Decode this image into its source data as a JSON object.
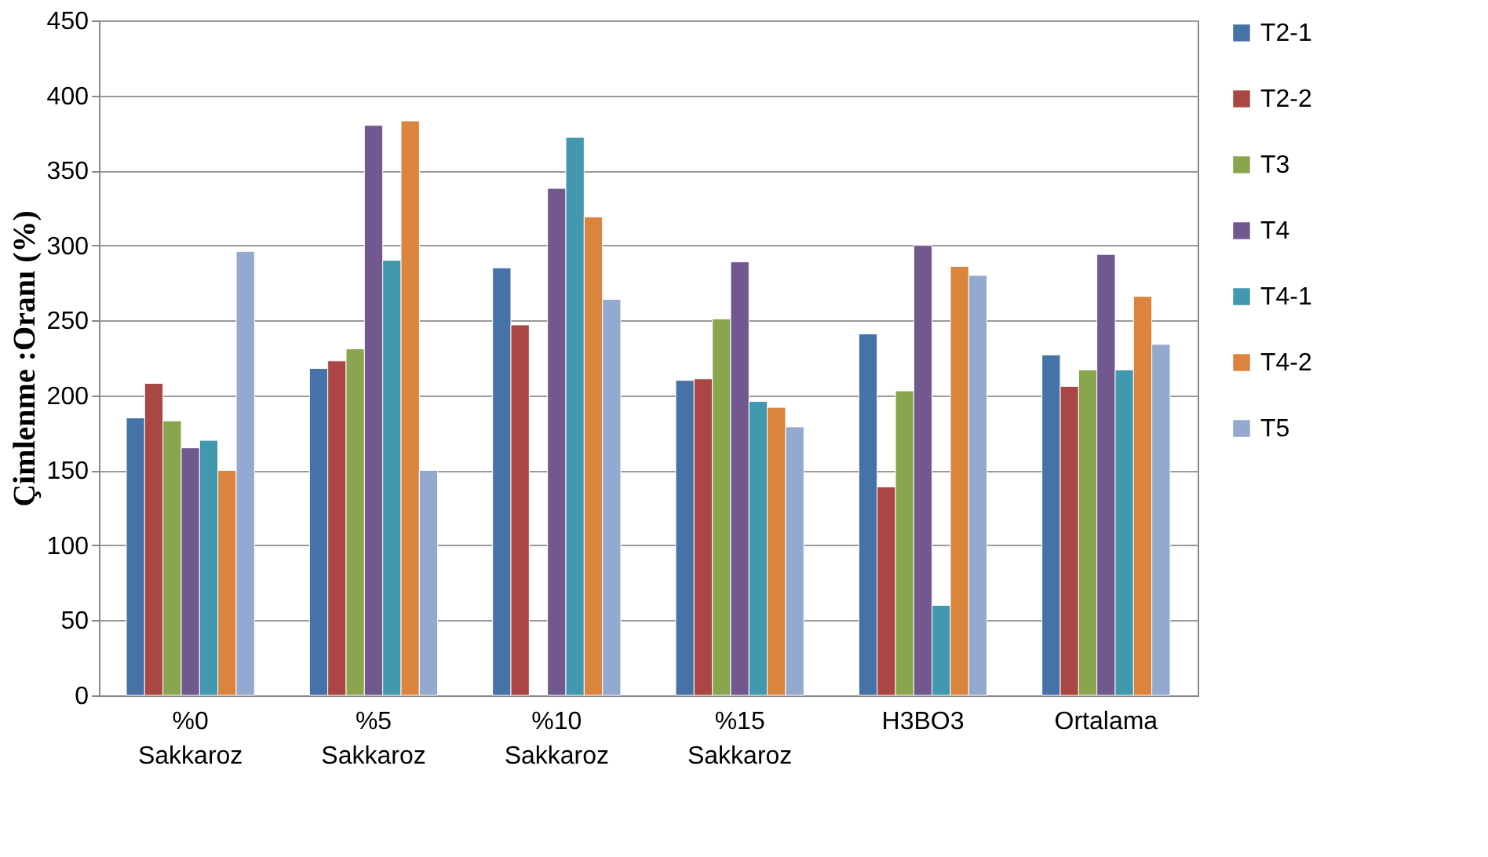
{
  "chart_data": {
    "type": "bar",
    "ylabel": "Çimlenme :Oranı (%)",
    "categories": [
      "%0 Sakkaroz",
      "%5 Sakkaroz",
      "%10 Sakkaroz",
      "%15 Sakkaroz",
      "H3BO3",
      "Ortalama"
    ],
    "series": [
      {
        "name": "T2-1",
        "color": "#4572a7",
        "values": [
          185,
          218,
          285,
          210,
          241,
          227
        ]
      },
      {
        "name": "T2-2",
        "color": "#aa4643",
        "values": [
          208,
          223,
          247,
          211,
          139,
          206
        ]
      },
      {
        "name": "T3",
        "color": "#89a54e",
        "values": [
          183,
          231,
          null,
          251,
          203,
          217
        ]
      },
      {
        "name": "T4",
        "color": "#71588f",
        "values": [
          165,
          380,
          338,
          289,
          300,
          294
        ]
      },
      {
        "name": "T4-1",
        "color": "#4198af",
        "values": [
          170,
          290,
          372,
          196,
          60,
          217
        ]
      },
      {
        "name": "T4-2",
        "color": "#db843d",
        "values": [
          150,
          383,
          319,
          192,
          286,
          266
        ]
      },
      {
        "name": "T5",
        "color": "#93a9cf",
        "values": [
          296,
          150,
          264,
          179,
          280,
          234
        ]
      }
    ],
    "ylim": [
      0,
      450
    ],
    "yticks": [
      0,
      50,
      100,
      150,
      200,
      250,
      300,
      350,
      400,
      450
    ],
    "grid": "y",
    "legend": "right"
  }
}
